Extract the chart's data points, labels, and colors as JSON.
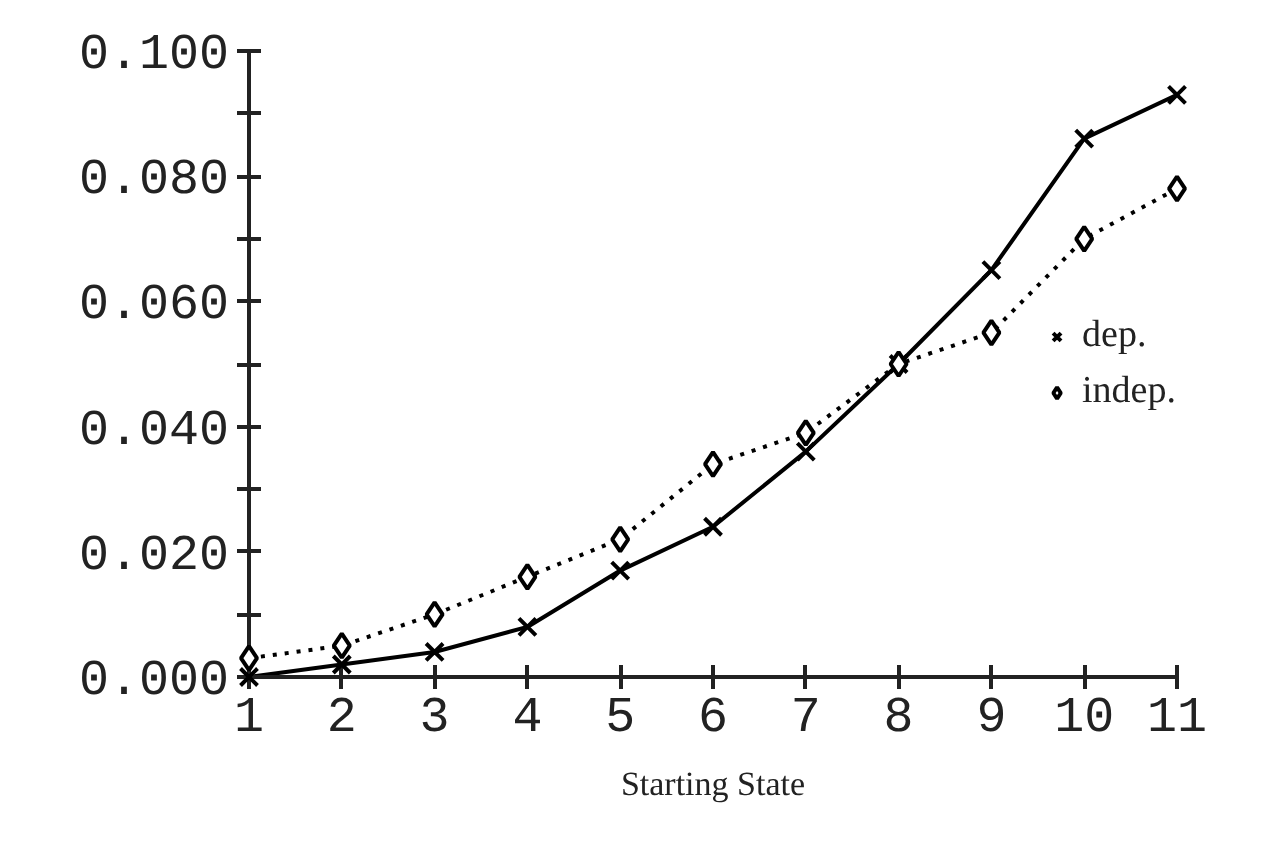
{
  "chart_data": {
    "type": "line",
    "xlabel": "Starting State",
    "x": [
      1,
      2,
      3,
      4,
      5,
      6,
      7,
      8,
      9,
      10,
      11
    ],
    "xlim": [
      1,
      11
    ],
    "xticks": [
      1,
      2,
      3,
      4,
      5,
      6,
      7,
      8,
      9,
      10,
      11
    ],
    "ylim": [
      0,
      0.1
    ],
    "yticks": [
      {
        "value": 0,
        "label": "0.000"
      },
      {
        "value": 0.01,
        "label": null
      },
      {
        "value": 0.02,
        "label": "0.020"
      },
      {
        "value": 0.03,
        "label": null
      },
      {
        "value": 0.04,
        "label": "0.040"
      },
      {
        "value": 0.05,
        "label": null
      },
      {
        "value": 0.06,
        "label": "0.060"
      },
      {
        "value": 0.07,
        "label": null
      },
      {
        "value": 0.08,
        "label": "0.080"
      },
      {
        "value": 0.09,
        "label": null
      },
      {
        "value": 0.1,
        "label": "0.100"
      }
    ],
    "series": [
      {
        "name": "dep.",
        "color": "#000000",
        "marker": "cross",
        "line_style": "solid",
        "values": [
          0.0,
          0.002,
          0.004,
          0.008,
          0.017,
          0.024,
          0.036,
          0.05,
          0.065,
          0.086,
          0.093
        ]
      },
      {
        "name": "indep.",
        "color": "#000000",
        "marker": "diamond",
        "line_style": "dotted",
        "values": [
          0.003,
          0.005,
          0.01,
          0.016,
          0.022,
          0.034,
          0.039,
          0.05,
          0.055,
          0.07,
          0.078
        ]
      }
    ],
    "legend": "right",
    "grid": false
  }
}
